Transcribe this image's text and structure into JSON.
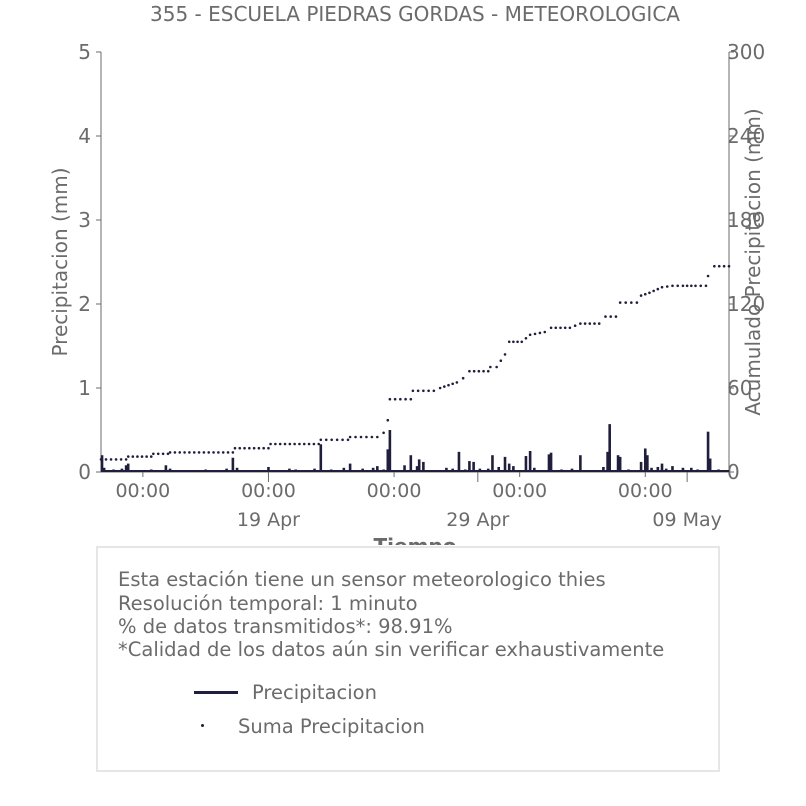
{
  "chart_data": {
    "type": "bar+scatter",
    "title": "355 - ESCUELA PIEDRAS GORDAS - METEOROLOGICA",
    "xlabel": "Tiempo",
    "ylabel_left": "Precipitacion (mm)",
    "ylabel_right": "Acumulado Precipitacion (mm)",
    "ylim_left": [
      0,
      5
    ],
    "ylim_right": [
      0,
      300
    ],
    "yticks_left": [
      "0",
      "1",
      "2",
      "3",
      "4",
      "5"
    ],
    "yticks_right": [
      "0",
      "60",
      "120",
      "180",
      "240",
      "300"
    ],
    "xticks_time": [
      "00:00",
      "00:00",
      "00:00",
      "00:00",
      "00:00"
    ],
    "xticks_date": [
      "19 Apr",
      "29 Apr",
      "09 May"
    ],
    "x_range_days": [
      0,
      30
    ],
    "x_time_tick_days": [
      2,
      8,
      14,
      20,
      26
    ],
    "x_date_tick_days": [
      8,
      18,
      28
    ],
    "series": [
      {
        "name": "Precipitacion",
        "color": "#1f1f3d",
        "points": [
          [
            0.05,
            0.2
          ],
          [
            0.15,
            0.05
          ],
          [
            0.6,
            0.03
          ],
          [
            1.0,
            0.04
          ],
          [
            1.2,
            0.08
          ],
          [
            1.3,
            0.1
          ],
          [
            2.0,
            0.02
          ],
          [
            2.4,
            0.03
          ],
          [
            3.1,
            0.08
          ],
          [
            3.3,
            0.04
          ],
          [
            5.0,
            0.03
          ],
          [
            6.0,
            0.04
          ],
          [
            6.3,
            0.17
          ],
          [
            6.5,
            0.05
          ],
          [
            8.0,
            0.06
          ],
          [
            9.0,
            0.04
          ],
          [
            9.3,
            0.03
          ],
          [
            10.2,
            0.04
          ],
          [
            10.5,
            0.33
          ],
          [
            11.0,
            0.03
          ],
          [
            11.6,
            0.05
          ],
          [
            11.9,
            0.1
          ],
          [
            12.5,
            0.04
          ],
          [
            13.0,
            0.05
          ],
          [
            13.2,
            0.07
          ],
          [
            13.5,
            0.03
          ],
          [
            13.7,
            0.27
          ],
          [
            13.8,
            0.5
          ],
          [
            14.5,
            0.08
          ],
          [
            14.8,
            0.2
          ],
          [
            15.1,
            0.07
          ],
          [
            15.2,
            0.15
          ],
          [
            15.4,
            0.12
          ],
          [
            16.5,
            0.05
          ],
          [
            16.8,
            0.04
          ],
          [
            17.1,
            0.24
          ],
          [
            17.4,
            0.03
          ],
          [
            17.6,
            0.13
          ],
          [
            17.8,
            0.12
          ],
          [
            18.1,
            0.04
          ],
          [
            18.5,
            0.04
          ],
          [
            18.7,
            0.2
          ],
          [
            19.0,
            0.06
          ],
          [
            19.3,
            0.18
          ],
          [
            19.5,
            0.1
          ],
          [
            19.7,
            0.07
          ],
          [
            20.3,
            0.19
          ],
          [
            20.5,
            0.25
          ],
          [
            20.7,
            0.05
          ],
          [
            21.4,
            0.21
          ],
          [
            21.5,
            0.23
          ],
          [
            22.0,
            0.03
          ],
          [
            22.5,
            0.04
          ],
          [
            22.9,
            0.2
          ],
          [
            24.0,
            0.06
          ],
          [
            24.2,
            0.24
          ],
          [
            24.3,
            0.57
          ],
          [
            24.7,
            0.2
          ],
          [
            24.8,
            0.18
          ],
          [
            25.2,
            0.03
          ],
          [
            25.8,
            0.12
          ],
          [
            26.0,
            0.28
          ],
          [
            26.1,
            0.2
          ],
          [
            26.3,
            0.05
          ],
          [
            26.6,
            0.06
          ],
          [
            26.8,
            0.1
          ],
          [
            27.0,
            0.04
          ],
          [
            27.3,
            0.07
          ],
          [
            27.8,
            0.05
          ],
          [
            28.2,
            0.05
          ],
          [
            28.5,
            0.03
          ],
          [
            29.0,
            0.48
          ],
          [
            29.1,
            0.16
          ],
          [
            29.5,
            0.03
          ],
          [
            29.9,
            0.02
          ]
        ]
      },
      {
        "name": "Suma Precipicion",
        "legend_label": "Suma Precipitacion",
        "color": "#1f1f3d",
        "points": [
          [
            0,
            9
          ],
          [
            1.2,
            9
          ],
          [
            1.3,
            11
          ],
          [
            2.4,
            11
          ],
          [
            2.5,
            13
          ],
          [
            3.2,
            13
          ],
          [
            3.3,
            14
          ],
          [
            6.3,
            14
          ],
          [
            6.4,
            17
          ],
          [
            8.0,
            17
          ],
          [
            8.1,
            20
          ],
          [
            10.4,
            20
          ],
          [
            10.5,
            23
          ],
          [
            11.8,
            23
          ],
          [
            11.9,
            25
          ],
          [
            13.2,
            25
          ],
          [
            13.5,
            28
          ],
          [
            13.7,
            37
          ],
          [
            13.8,
            52
          ],
          [
            14.8,
            52
          ],
          [
            14.9,
            58
          ],
          [
            15.9,
            58
          ],
          [
            16.2,
            60
          ],
          [
            16.6,
            62
          ],
          [
            17.0,
            64
          ],
          [
            17.3,
            67
          ],
          [
            17.6,
            72
          ],
          [
            18.5,
            72
          ],
          [
            18.6,
            75
          ],
          [
            18.9,
            75
          ],
          [
            19.3,
            84
          ],
          [
            19.5,
            93
          ],
          [
            20.1,
            93
          ],
          [
            20.5,
            98
          ],
          [
            21.2,
            100
          ],
          [
            21.5,
            103
          ],
          [
            22.4,
            103
          ],
          [
            22.9,
            106
          ],
          [
            23.8,
            106
          ],
          [
            24.1,
            111
          ],
          [
            24.6,
            111
          ],
          [
            24.8,
            121
          ],
          [
            25.6,
            121
          ],
          [
            25.8,
            126
          ],
          [
            26.2,
            128
          ],
          [
            26.8,
            132
          ],
          [
            27.3,
            133
          ],
          [
            27.8,
            133
          ],
          [
            28.4,
            133
          ],
          [
            28.9,
            133
          ],
          [
            29.0,
            140
          ],
          [
            29.3,
            147
          ],
          [
            30,
            147
          ]
        ]
      }
    ],
    "legend_placement": "below",
    "grid": false
  },
  "info": {
    "line1": "Esta estación tiene un sensor meteorologico thies",
    "line2": "Resolución temporal: 1 minuto",
    "line3": "% de datos transmitidos*: 98.91%",
    "line4": "*Calidad de los datos aún sin verificar exhaustivamente"
  },
  "legend": {
    "precip_label": "Precipitacion",
    "sum_label": "Suma Precipitacion"
  }
}
